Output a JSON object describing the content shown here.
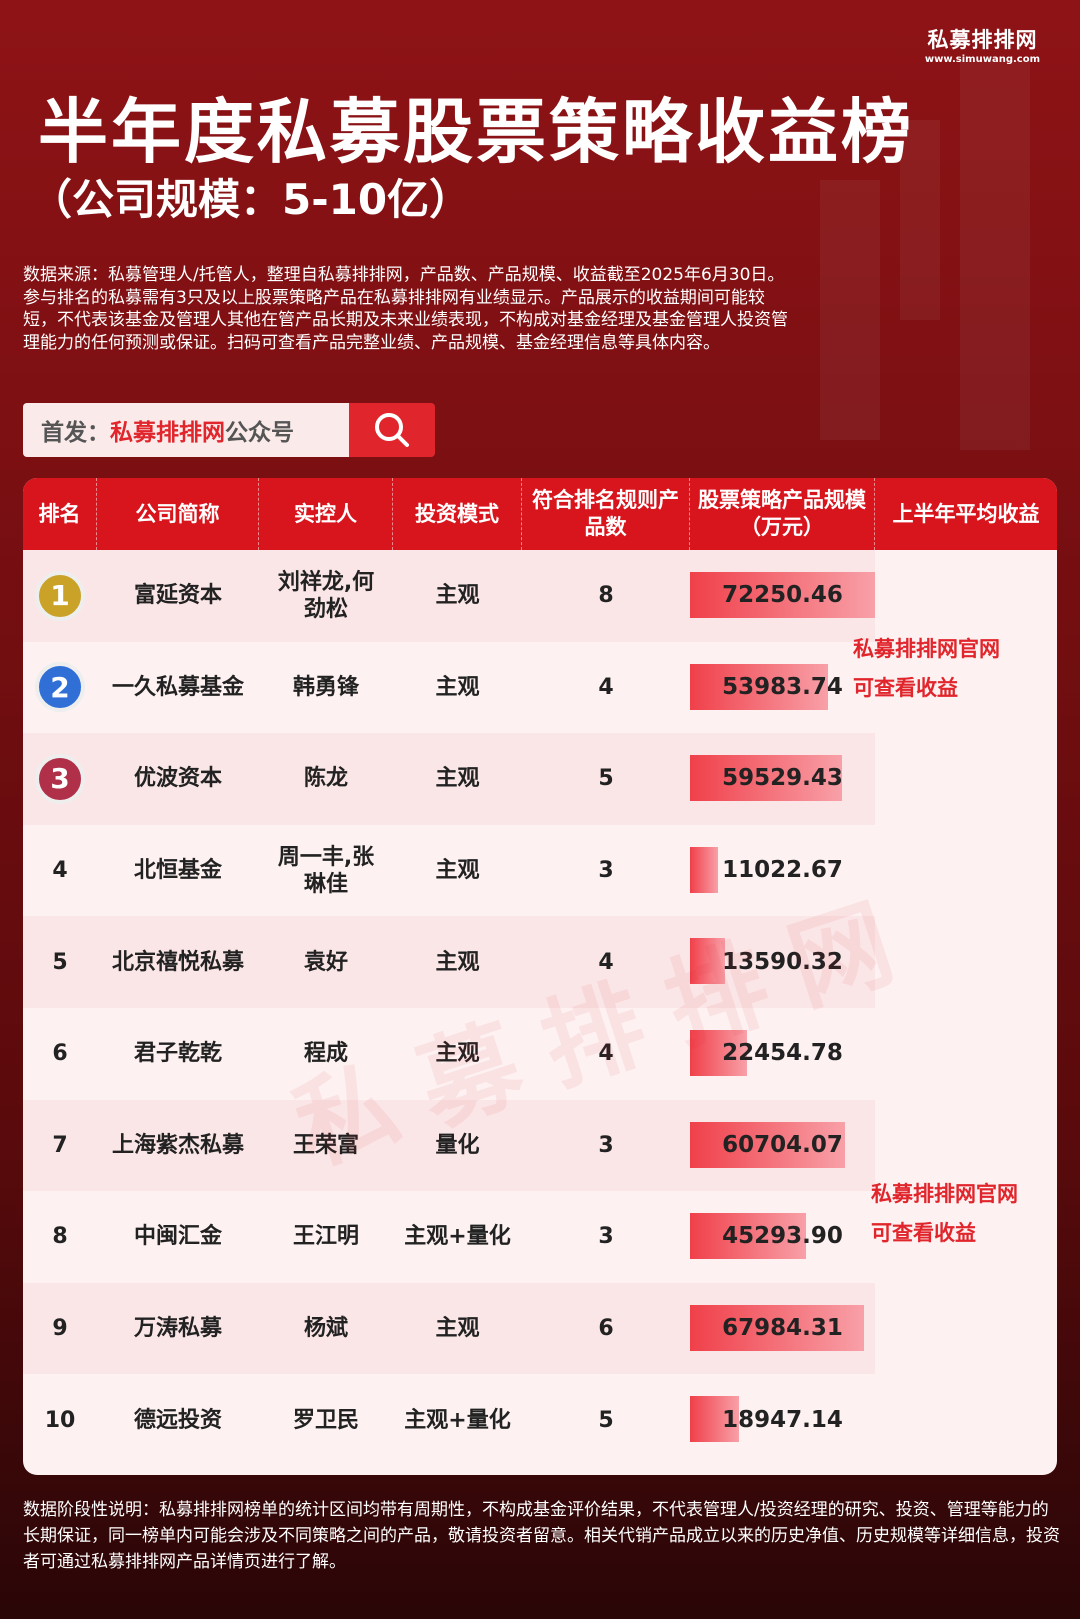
{
  "logo": {
    "name": "私募排排网",
    "url": "www.simuwang.com"
  },
  "title": "半年度私募股票策略收益榜",
  "subtitle": "（公司规模：5-10亿）",
  "disclaimer": "数据来源：私募管理人/托管人，整理自私募排排网，产品数、产品规模、收益截至2025年6月30日。参与排名的私募需有3只及以上股票策略产品在私募排排网有业绩显示。产品展示的收益期间可能较短，不代表该基金及管理人其他在管产品长期及未来业绩表现，不构成对基金经理及基金管理人投资管理能力的任何预测或保证。扫码可查看产品完整业绩、产品规模、基金经理信息等具体内容。",
  "search": {
    "prefix": "首发：",
    "name": "私募排排网",
    "suffix": "公众号",
    "icon": "search-icon"
  },
  "table": {
    "headers": [
      "排名",
      "公司简称",
      "实控人",
      "投资模式",
      "符合排名规则产品数",
      "股票策略产品规模（万元）",
      "上半年平均收益"
    ],
    "rows": [
      {
        "rank": "1",
        "company": "富延资本",
        "controller": "刘祥龙,何劲松",
        "mode": "主观",
        "count": "8",
        "size": "72250.46"
      },
      {
        "rank": "2",
        "company": "一久私募基金",
        "controller": "韩勇锋",
        "mode": "主观",
        "count": "4",
        "size": "53983.74"
      },
      {
        "rank": "3",
        "company": "优波资本",
        "controller": "陈龙",
        "mode": "主观",
        "count": "5",
        "size": "59529.43"
      },
      {
        "rank": "4",
        "company": "北恒基金",
        "controller": "周一丰,张琳佳",
        "mode": "主观",
        "count": "3",
        "size": "11022.67"
      },
      {
        "rank": "5",
        "company": "北京禧悦私募",
        "controller": "袁好",
        "mode": "主观",
        "count": "4",
        "size": "13590.32"
      },
      {
        "rank": "6",
        "company": "君子乾乾",
        "controller": "程成",
        "mode": "主观",
        "count": "4",
        "size": "22454.78"
      },
      {
        "rank": "7",
        "company": "上海紫杰私募",
        "controller": "王荣富",
        "mode": "量化",
        "count": "3",
        "size": "60704.07"
      },
      {
        "rank": "8",
        "company": "中闽汇金",
        "controller": "王江明",
        "mode": "主观+量化",
        "count": "3",
        "size": "45293.90"
      },
      {
        "rank": "9",
        "company": "万涛私募",
        "controller": "杨斌",
        "mode": "主观",
        "count": "6",
        "size": "67984.31"
      },
      {
        "rank": "10",
        "company": "德远投资",
        "controller": "罗卫民",
        "mode": "主观+量化",
        "count": "5",
        "size": "18947.14"
      }
    ],
    "return_note_1": "私募排排网官网",
    "return_note_2": "可查看收益",
    "medal_colors": [
      "#c9a227",
      "#2f6fd6",
      "#b0304a"
    ],
    "bar_color": "#f0404a"
  },
  "watermark": "私募排排网",
  "footer": "数据阶段性说明：私募排排网榜单的统计区间均带有周期性，不构成基金评价结果，不代表管理人/投资经理的研究、投资、管理等能力的长期保证，同一榜单内可能会涉及不同策略之间的产品，敬请投资者留意。相关代销产品成立以来的历史净值、历史规模等详细信息，投资者可通过私募排排网产品详情页进行了解。"
}
